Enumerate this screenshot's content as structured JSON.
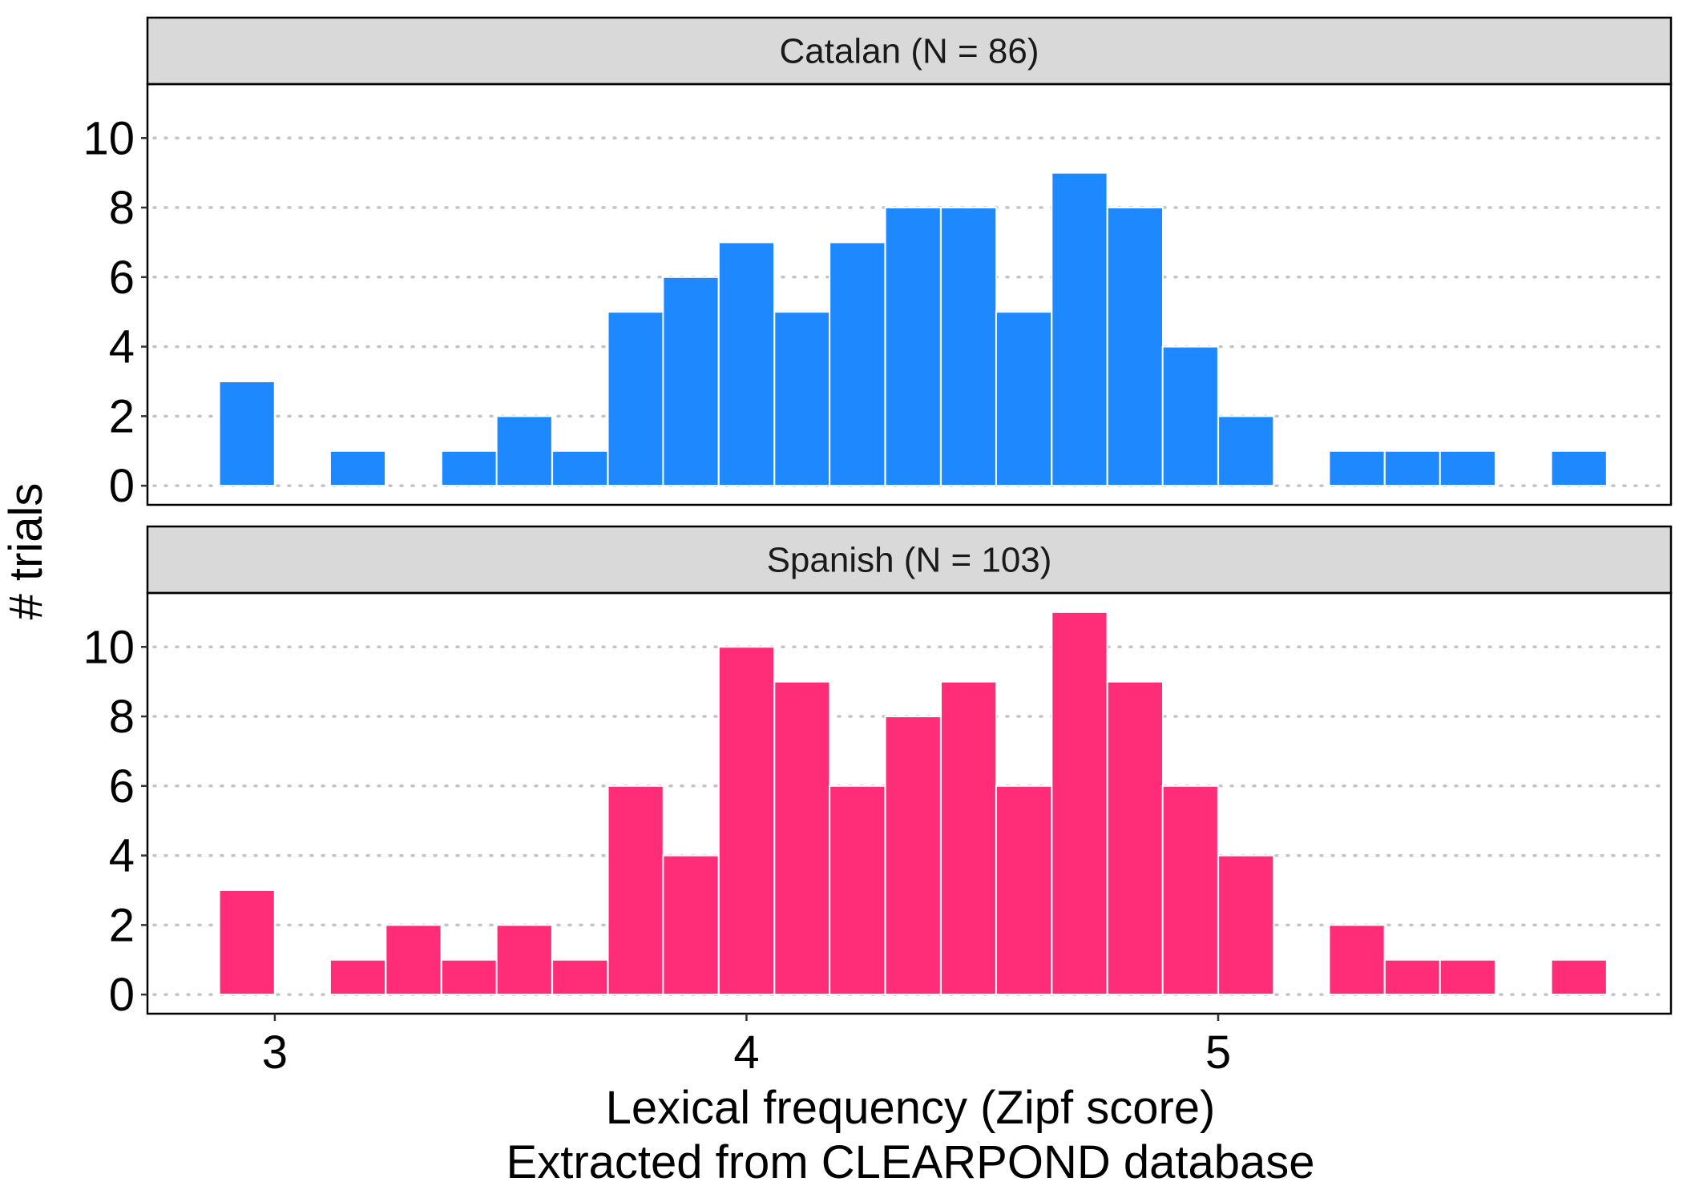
{
  "chart_data": {
    "type": "bar",
    "xlabel": "Lexical frequency (Zipf score)",
    "xlabel_line2": "Extracted from CLEARPOND database",
    "ylabel": "# trials",
    "x_ticks": [
      3,
      4,
      5
    ],
    "x_range": [
      2.73,
      5.96
    ],
    "y_ticks": [
      0,
      2,
      4,
      6,
      8,
      10
    ],
    "ylim": [
      -0.55,
      11.55
    ],
    "bin_width": 0.1176,
    "bin_centers": [
      2.941,
      3.059,
      3.176,
      3.294,
      3.412,
      3.529,
      3.647,
      3.765,
      3.882,
      4.0,
      4.118,
      4.235,
      4.353,
      4.471,
      4.588,
      4.706,
      4.824,
      4.941,
      5.059,
      5.176,
      5.294,
      5.412,
      5.529,
      5.647,
      5.765
    ],
    "grid": "horizontal dotted",
    "panels": [
      {
        "strip_label": "Catalan (N = 86)",
        "color": "#1E88FF",
        "values": [
          3,
          0,
          1,
          0,
          1,
          2,
          1,
          5,
          6,
          7,
          5,
          7,
          8,
          8,
          5,
          9,
          8,
          4,
          2,
          0,
          1,
          1,
          1,
          0,
          1
        ]
      },
      {
        "strip_label": "Spanish (N = 103)",
        "color": "#FF2D78",
        "values": [
          3,
          0,
          1,
          2,
          1,
          2,
          1,
          6,
          4,
          10,
          9,
          6,
          8,
          9,
          6,
          11,
          9,
          6,
          4,
          0,
          2,
          1,
          1,
          0,
          1
        ]
      }
    ]
  }
}
